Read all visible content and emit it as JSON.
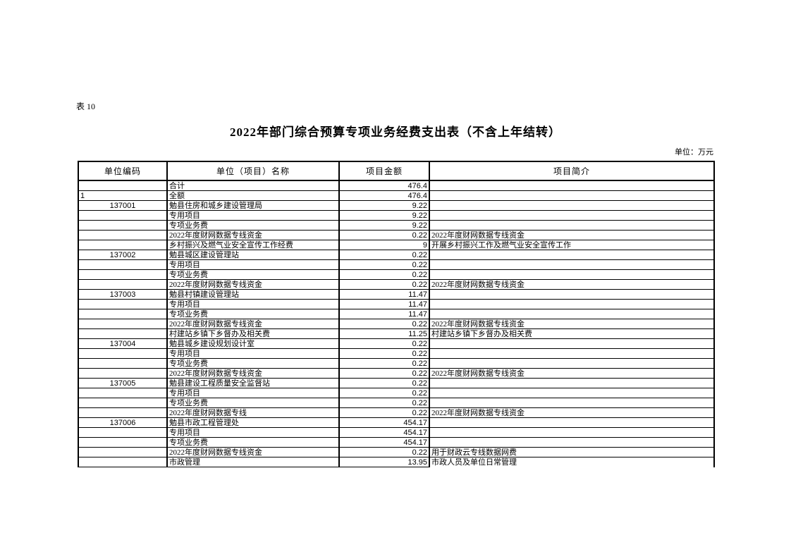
{
  "page": {
    "table_label": "表 10",
    "title": "2022年部门综合预算专项业务经费支出表（不含上年结转）",
    "unit_note": "单位：万元"
  },
  "colors": {
    "background": "#ffffff",
    "text": "#000000",
    "border": "#000000"
  },
  "table": {
    "columns": [
      "单位编码",
      "单位（项目）名称",
      "项目金额",
      "项目简介"
    ],
    "rows": [
      {
        "code": "",
        "name": "合计",
        "amount": "476.4",
        "desc": ""
      },
      {
        "code": "1",
        "name": "全额",
        "amount": "476.4",
        "desc": ""
      },
      {
        "code": "137001",
        "name": "勉县住房和城乡建设管理局",
        "amount": "9.22",
        "desc": ""
      },
      {
        "code": "",
        "name": "专用项目",
        "amount": "9.22",
        "desc": ""
      },
      {
        "code": "",
        "name": "专项业务费",
        "amount": "9.22",
        "desc": ""
      },
      {
        "code": "",
        "name": "2022年度财网数据专线资金",
        "amount": "0.22",
        "desc": "2022年度财网数据专线资金"
      },
      {
        "code": "",
        "name": "乡村振兴及燃气业安全宣传工作经费",
        "amount": "9",
        "desc": "开展乡村振兴工作及燃气业安全宣传工作"
      },
      {
        "code": "137002",
        "name": "勉县城区建设管理站",
        "amount": "0.22",
        "desc": ""
      },
      {
        "code": "",
        "name": "专用项目",
        "amount": "0.22",
        "desc": ""
      },
      {
        "code": "",
        "name": "专项业务费",
        "amount": "0.22",
        "desc": ""
      },
      {
        "code": "",
        "name": "2022年度财网数据专线资金",
        "amount": "0.22",
        "desc": "2022年度财网数据专线资金"
      },
      {
        "code": "137003",
        "name": "勉县村镇建设管理站",
        "amount": "11.47",
        "desc": ""
      },
      {
        "code": "",
        "name": "专用项目",
        "amount": "11.47",
        "desc": ""
      },
      {
        "code": "",
        "name": "专项业务费",
        "amount": "11.47",
        "desc": ""
      },
      {
        "code": "",
        "name": "2022年度财网数据专线资金",
        "amount": "0.22",
        "desc": "2022年度财网数据专线资金"
      },
      {
        "code": "",
        "name": "村建站乡镇下乡督办及相关费",
        "amount": "11.25",
        "desc": "村建站乡镇下乡督办及相关费"
      },
      {
        "code": "137004",
        "name": "勉县城乡建设规划设计室",
        "amount": "0.22",
        "desc": ""
      },
      {
        "code": "",
        "name": "专用项目",
        "amount": "0.22",
        "desc": ""
      },
      {
        "code": "",
        "name": "专项业务费",
        "amount": "0.22",
        "desc": ""
      },
      {
        "code": "",
        "name": "2022年度财网数据专线资金",
        "amount": "0.22",
        "desc": "2022年度财网数据专线资金"
      },
      {
        "code": "137005",
        "name": "勉县建设工程质量安全监督站",
        "amount": "0.22",
        "desc": ""
      },
      {
        "code": "",
        "name": "专用项目",
        "amount": "0.22",
        "desc": ""
      },
      {
        "code": "",
        "name": "专项业务费",
        "amount": "0.22",
        "desc": ""
      },
      {
        "code": "",
        "name": "2022年度财网数据专线",
        "amount": "0.22",
        "desc": "2022年度财网数据专线资金"
      },
      {
        "code": "137006",
        "name": "勉县市政工程管理处",
        "amount": "454.17",
        "desc": ""
      },
      {
        "code": "",
        "name": "专用项目",
        "amount": "454.17",
        "desc": ""
      },
      {
        "code": "",
        "name": "专项业务费",
        "amount": "454.17",
        "desc": ""
      },
      {
        "code": "",
        "name": "2022年度财网数据专线资金",
        "amount": "0.22",
        "desc": "用于财政云专线数据网费"
      },
      {
        "code": "",
        "name": "市政管理",
        "amount": "13.95",
        "desc": "市政人员及单位日常管理"
      }
    ]
  }
}
